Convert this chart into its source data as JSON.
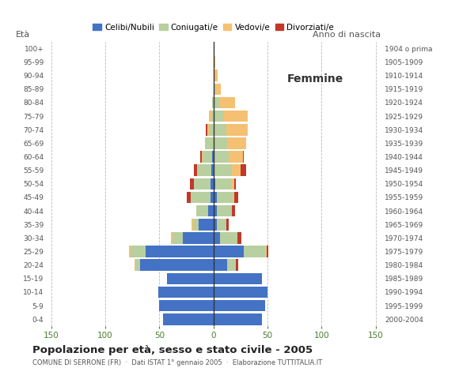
{
  "age_groups": [
    "0-4",
    "5-9",
    "10-14",
    "15-19",
    "20-24",
    "25-29",
    "30-34",
    "35-39",
    "40-44",
    "45-49",
    "50-54",
    "55-59",
    "60-64",
    "65-69",
    "70-74",
    "75-79",
    "80-84",
    "85-89",
    "90-94",
    "95-99",
    "100+"
  ],
  "birth_years": [
    "2000-2004",
    "1995-1999",
    "1990-1994",
    "1985-1989",
    "1980-1984",
    "1975-1979",
    "1970-1974",
    "1965-1969",
    "1960-1964",
    "1955-1959",
    "1950-1954",
    "1945-1949",
    "1940-1944",
    "1935-1939",
    "1930-1934",
    "1925-1929",
    "1920-1924",
    "1915-1919",
    "1910-1914",
    "1905-1909",
    "1904 o prima"
  ],
  "male": {
    "celibi": [
      47,
      50,
      51,
      43,
      68,
      63,
      28,
      14,
      5,
      3,
      3,
      2,
      1,
      0,
      0,
      0,
      0,
      0,
      0,
      0,
      0
    ],
    "coniugati": [
      0,
      0,
      0,
      0,
      4,
      14,
      10,
      5,
      11,
      18,
      15,
      13,
      9,
      7,
      4,
      2,
      1,
      0,
      0,
      0,
      0
    ],
    "vedovi": [
      0,
      0,
      0,
      0,
      1,
      1,
      1,
      1,
      0,
      0,
      0,
      0,
      1,
      1,
      2,
      2,
      0,
      0,
      0,
      0,
      0
    ],
    "divorziati": [
      0,
      0,
      0,
      0,
      0,
      0,
      0,
      0,
      0,
      4,
      4,
      3,
      1,
      0,
      1,
      0,
      0,
      0,
      0,
      0,
      0
    ]
  },
  "female": {
    "nubili": [
      45,
      48,
      50,
      45,
      13,
      28,
      6,
      3,
      3,
      3,
      2,
      1,
      0,
      0,
      0,
      0,
      0,
      0,
      0,
      0,
      0
    ],
    "coniugate": [
      0,
      0,
      0,
      0,
      8,
      20,
      16,
      9,
      14,
      15,
      14,
      16,
      14,
      13,
      12,
      10,
      5,
      2,
      1,
      0,
      0
    ],
    "vedove": [
      0,
      0,
      0,
      0,
      0,
      1,
      0,
      0,
      0,
      1,
      3,
      8,
      13,
      17,
      20,
      22,
      15,
      5,
      3,
      2,
      0
    ],
    "divorziate": [
      0,
      0,
      0,
      0,
      2,
      2,
      4,
      2,
      3,
      4,
      2,
      5,
      1,
      0,
      0,
      0,
      0,
      0,
      0,
      0,
      0
    ]
  },
  "colors": {
    "celibi_nubili": "#4472c4",
    "coniugati": "#b8cfa0",
    "vedovi": "#f5c072",
    "divorziati": "#c0392b"
  },
  "xlim": 155,
  "title": "Popolazione per età, sesso e stato civile - 2005",
  "subtitle": "COMUNE DI SERRONE (FR)  ·  Dati ISTAT 1° gennaio 2005  ·  Elaborazione TUTTITALIA.IT",
  "ylabel_left": "Età",
  "ylabel_right": "Anno di nascita",
  "legend_labels": [
    "Celibi/Nubili",
    "Coniugati/e",
    "Vedovi/e",
    "Divorziati/e"
  ],
  "label_femmine": "Femmine",
  "bg_color": "#ffffff",
  "bar_height": 0.85
}
